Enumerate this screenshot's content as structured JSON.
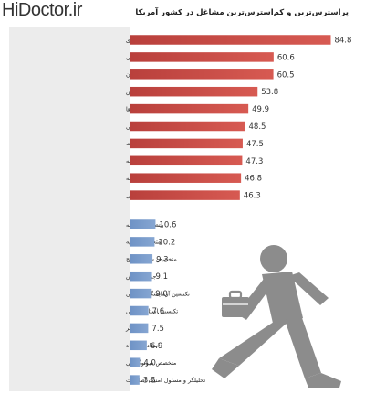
{
  "watermark": "HiDoctor.ir",
  "chart_data": {
    "type": "bar",
    "orientation": "horizontal",
    "title": "پراسترس‌ترین و کم‌استرس‌ترین مشاغل در کشور آمریکا",
    "xlabel": "",
    "ylabel": "",
    "xlim": [
      0,
      85
    ],
    "grid": false,
    "series": [
      {
        "color": "#c0504d",
        "categories": [
          "سربازان ارتش دارای درجه استواری",
          "ماموران آتش‌نشانی",
          "خلبانان",
          "ماموران پلیس",
          "هماهنگ‌کننده رویدادها",
          "مدیر روابط عمومی",
          "مدیر ارشد شرکت",
          "مجری برنامه",
          "گزارشگر روزنامه",
          "راننده تاکسی"
        ],
        "values": [
          84.8,
          60.6,
          60.5,
          53.8,
          49.9,
          48.5,
          47.5,
          47.3,
          46.8,
          46.3
        ],
        "value_labels": [
          "84.8",
          "60.6",
          "60.5",
          "53.8",
          "49.9",
          "48.5",
          "47.5",
          "47.3",
          "46.8",
          "46.3"
        ]
      },
      {
        "color": "#7094c7",
        "categories": [
          "متصدی کتابخانه",
          "متخصص تغذیه",
          "متخصص شنوایی‌سنج",
          "جواهرفروش",
          "تکنسین آزمایشگاه پزشکی",
          "تکنسین استاد پزشکی",
          "آرایشگر",
          "استاد دانشگاه",
          "متخصص سونوگرافی",
          "تحلیلگر و مسئول امنیت اطلاعات"
        ],
        "values": [
          10.6,
          10.2,
          9.3,
          9.1,
          9.0,
          7.6,
          7.5,
          6.9,
          4.0,
          3.8
        ],
        "value_labels": [
          "10.6",
          "10.2",
          "9.3",
          "9.1",
          "9.0",
          "7.6",
          "7.5",
          "6.9",
          "4.0",
          "3.8"
        ]
      }
    ]
  }
}
